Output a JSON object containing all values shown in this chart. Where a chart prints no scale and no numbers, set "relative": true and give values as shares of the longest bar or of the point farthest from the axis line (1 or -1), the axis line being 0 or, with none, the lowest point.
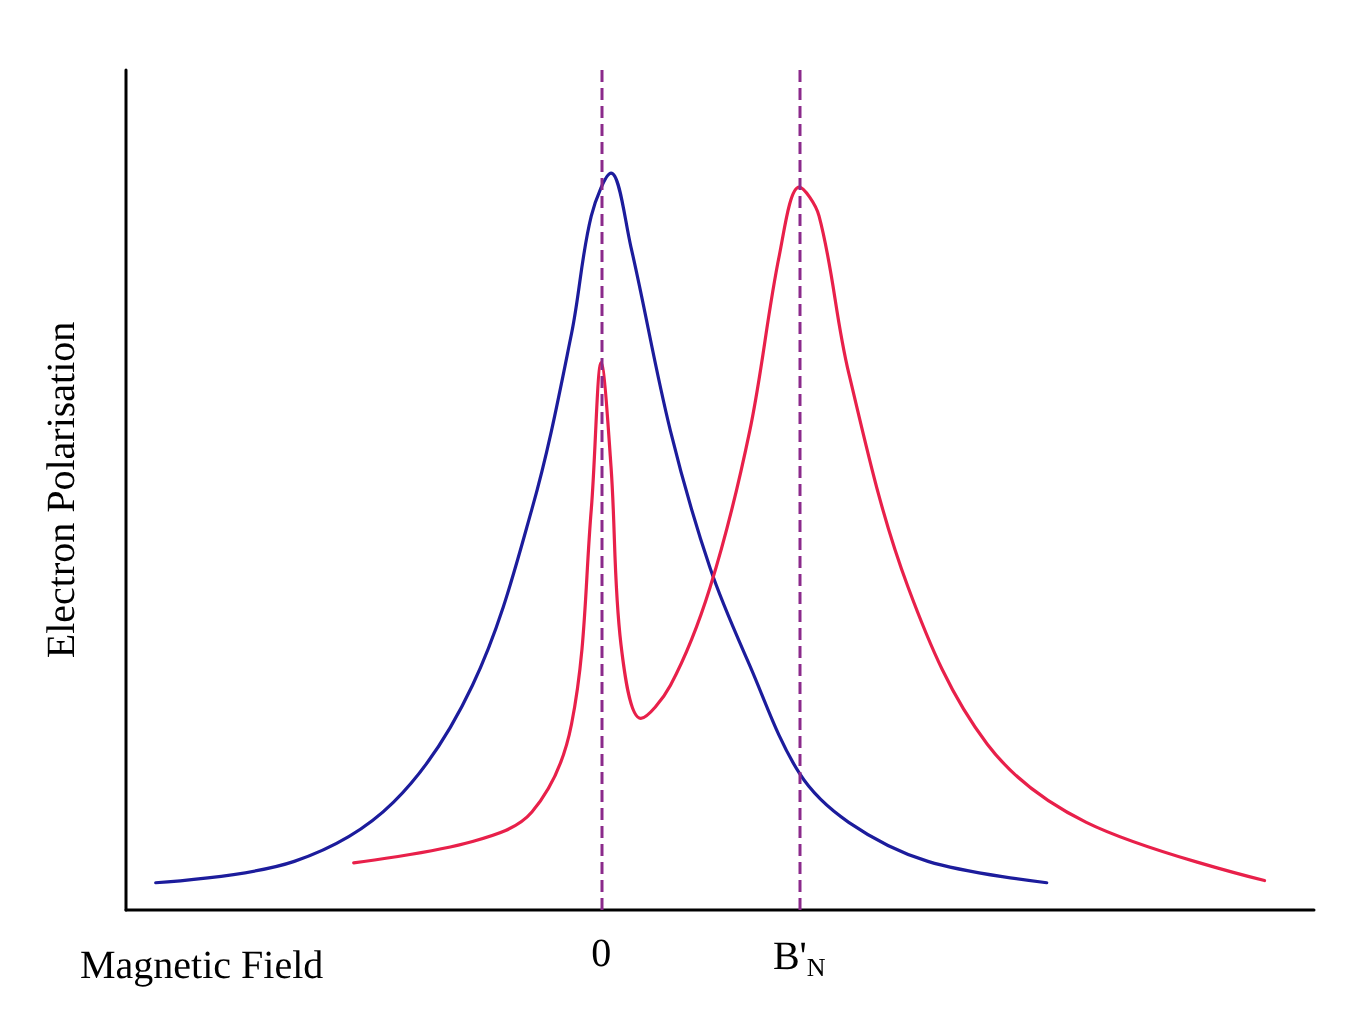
{
  "chart_data": {
    "type": "line",
    "relative": true,
    "xlabel": "Magnetic Field",
    "ylabel": "Electron Polarisation",
    "categories": [
      null,
      null,
      null,
      null,
      null,
      null,
      null,
      null,
      null,
      null,
      null,
      null,
      null,
      null,
      null,
      null,
      null,
      null,
      null,
      null,
      null,
      null,
      null,
      null,
      null,
      null,
      null,
      null,
      null,
      null,
      null,
      null,
      null,
      null,
      null,
      null,
      null,
      null,
      null,
      null,
      null,
      null,
      null,
      null,
      null,
      null,
      null,
      null,
      "0",
      null,
      null,
      null,
      null,
      null,
      null,
      null,
      null,
      null,
      null,
      null,
      null,
      null,
      null,
      null,
      null,
      null,
      null,
      null,
      "B'$_{N}$",
      null,
      null,
      null,
      null,
      null,
      null,
      null,
      null,
      null,
      null,
      null,
      null,
      null,
      null,
      null,
      null,
      null,
      null,
      null,
      null,
      null,
      null,
      null,
      null,
      null,
      null,
      null,
      null,
      null,
      null,
      null,
      null,
      null,
      null,
      null,
      null,
      null,
      null,
      null,
      null,
      null,
      null,
      null,
      null,
      null,
      null,
      null,
      null,
      null,
      null,
      null,
      null
    ],
    "series": [
      {
        "color": "#1c1c9c",
        "values": [
          null,
          null,
          null,
          0.037,
          null,
          null,
          null,
          null,
          null,
          null,
          null,
          null,
          null,
          null,
          null,
          null,
          null,
          0.066,
          null,
          null,
          null,
          null,
          null,
          null,
          null,
          null,
          null,
          0.146,
          null,
          null,
          null,
          null,
          null,
          null,
          null,
          0.305,
          null,
          null,
          null,
          null,
          null,
          0.544,
          null,
          null,
          null,
          0.782,
          null,
          0.942,
          null,
          1.0,
          null,
          0.9,
          null,
          null,
          null,
          0.65,
          null,
          null,
          null,
          0.464,
          null,
          null,
          null,
          0.332,
          null,
          null,
          null,
          null,
          0.186,
          null,
          null,
          null,
          null,
          0.119,
          null,
          null,
          null,
          null,
          null,
          null,
          null,
          0.066,
          null,
          null,
          null,
          null,
          null,
          null,
          null,
          null,
          null,
          null,
          null,
          0.037,
          null,
          null,
          null,
          null,
          null,
          null,
          null,
          null,
          null,
          null,
          null,
          null,
          null,
          null,
          null,
          null,
          null,
          null,
          null,
          null,
          null,
          null,
          null,
          null,
          null,
          null,
          null
        ]
      },
      {
        "color": "#e8204a",
        "values": [
          null,
          null,
          null,
          null,
          null,
          null,
          null,
          null,
          null,
          null,
          null,
          null,
          null,
          null,
          null,
          null,
          null,
          null,
          null,
          null,
          null,
          null,
          null,
          0.064,
          null,
          null,
          null,
          null,
          null,
          null,
          null,
          null,
          null,
          null,
          null,
          0.093,
          null,
          null,
          null,
          null,
          null,
          0.133,
          null,
          null,
          null,
          0.252,
          null,
          0.544,
          0.743,
          0.6,
          0.36,
          null,
          0.26,
          null,
          null,
          0.305,
          null,
          null,
          null,
          0.438,
          null,
          null,
          null,
          0.65,
          null,
          null,
          0.889,
          null,
          0.981,
          null,
          0.942,
          null,
          null,
          0.729,
          null,
          null,
          null,
          null,
          null,
          0.438,
          null,
          null,
          null,
          null,
          null,
          null,
          null,
          0.225,
          null,
          null,
          null,
          null,
          null,
          null,
          null,
          null,
          null,
          0.119,
          null,
          null,
          null,
          null,
          null,
          null,
          null,
          null,
          null,
          null,
          null,
          null,
          null,
          null,
          null,
          null,
          null,
          0.04,
          null,
          null,
          null,
          null,
          null
        ]
      }
    ],
    "ref_lines": [
      {
        "axis": "x",
        "value": "0",
        "color": "#8b2a8b",
        "line_style": "dashed"
      },
      {
        "axis": "x",
        "value": "B'$_{N}$",
        "color": "#8b2a8b",
        "line_style": "dashed"
      }
    ],
    "grid": false,
    "marker": "none",
    "line_style": "solid",
    "tick_labels": "x"
  }
}
